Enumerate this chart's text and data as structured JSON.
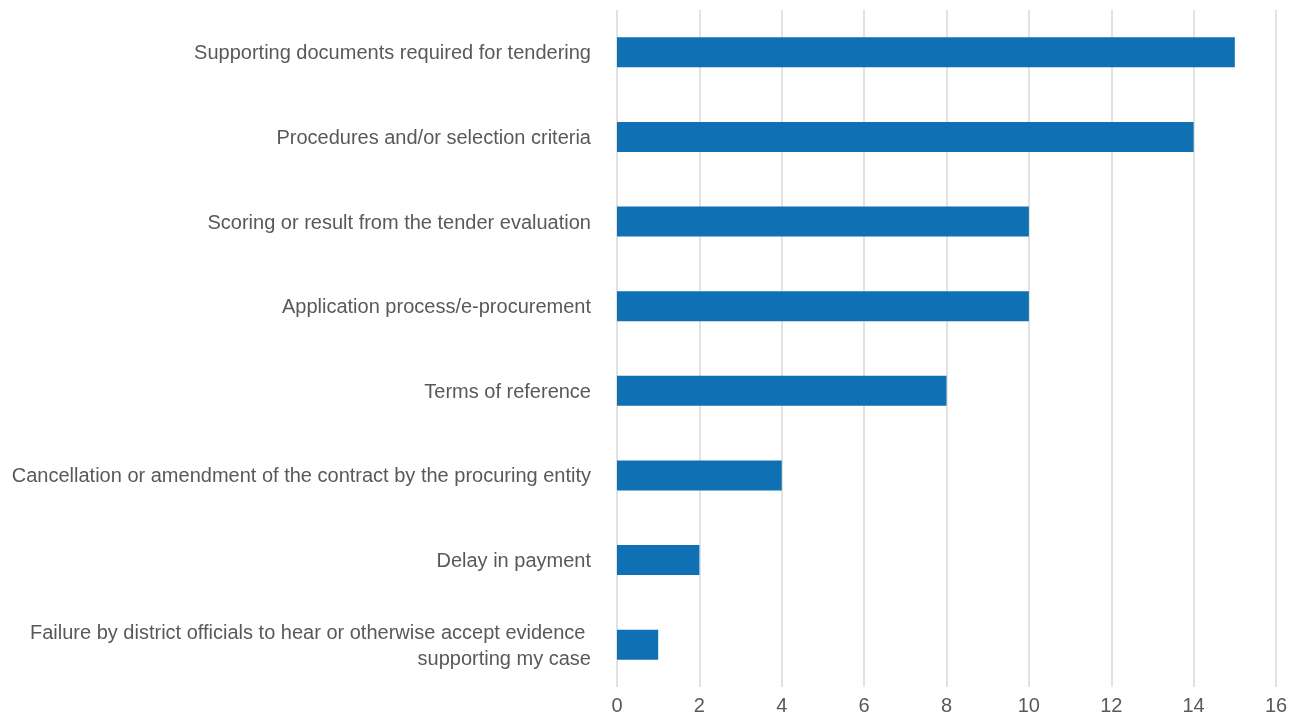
{
  "chart_data": {
    "type": "bar",
    "orientation": "horizontal",
    "categories": [
      "Supporting documents required for tendering",
      "Procedures and/or selection criteria",
      "Scoring or result from the tender evaluation",
      "Application process/e-procurement",
      "Terms of reference",
      "Cancellation or amendment of the contract by the procuring entity",
      "Delay in payment",
      "Failure by district officials to hear or otherwise accept evidence supporting my case"
    ],
    "values": [
      15,
      14,
      10,
      10,
      8,
      4,
      2,
      1
    ],
    "color": "#0f70b3",
    "xlim": [
      0,
      16
    ],
    "xticks": [
      0,
      2,
      4,
      6,
      8,
      10,
      12,
      14,
      16
    ],
    "grid": "x"
  }
}
